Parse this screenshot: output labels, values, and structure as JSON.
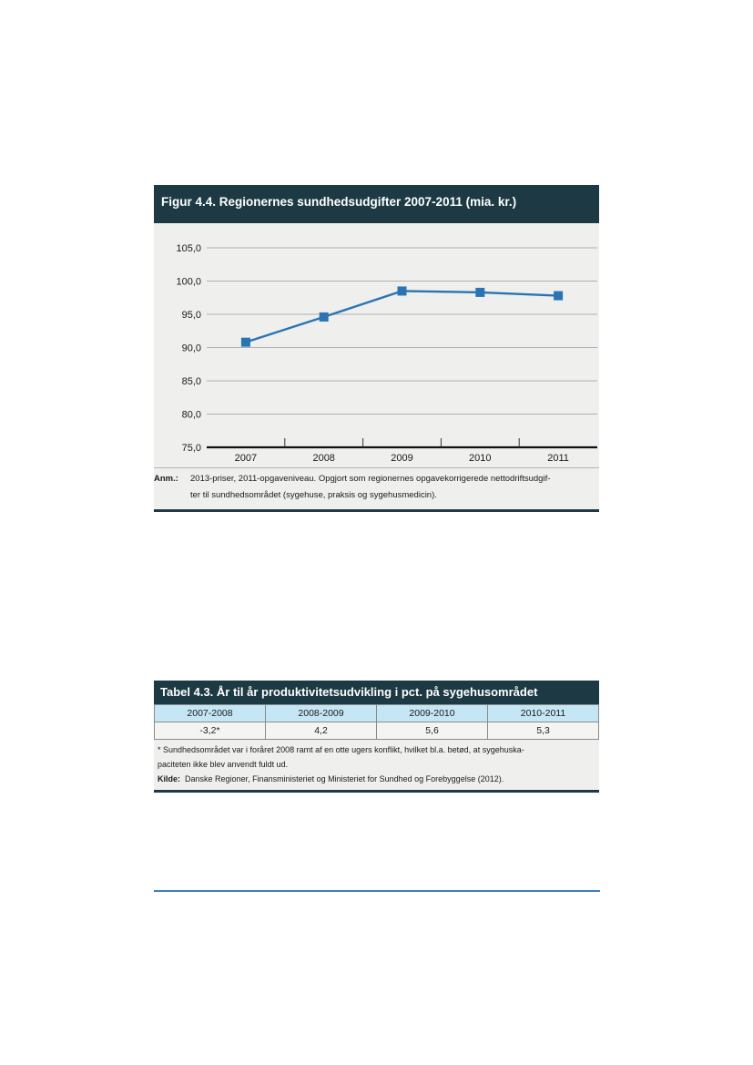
{
  "figure": {
    "title": "Figur 4.4.  Regionernes sundhedsudgifter 2007-2011 (mia. kr.)",
    "note_label": "Anm.:",
    "note_line1": "2013-priser, 2011-opgaveniveau. Opgjort som regionernes opgavekorrigerede nettodriftsudgif-",
    "note_line2": "ter til sundhedsområdet (sygehuse, praksis og sygehusmedicin)."
  },
  "chart_data": {
    "type": "line",
    "title": "Figur 4.4.  Regionernes sundhedsudgifter 2007-2011 (mia. kr.)",
    "x": [
      "2007",
      "2008",
      "2009",
      "2010",
      "2011"
    ],
    "series": [
      {
        "values": [
          90.8,
          94.6,
          98.5,
          98.3,
          97.8
        ]
      }
    ],
    "yticks": [
      "75,0",
      "80,0",
      "85,0",
      "90,0",
      "95,0",
      "100,0",
      "105,0"
    ],
    "ylim": [
      75,
      105
    ],
    "grid": true,
    "line_color": "#2a74b3"
  },
  "table": {
    "title": "Tabel 4.3. År til år produktivitetsudvikling i pct. på sygehusområdet",
    "headers": [
      "2007-2008",
      "2008-2009",
      "2009-2010",
      "2010-2011"
    ],
    "values": [
      "-3,2*",
      "4,2",
      "5,6",
      "5,3"
    ],
    "footnote_line1": "* Sundhedsområdet var i foråret 2008 ramt af en otte ugers konflikt, hvilket bl.a. betød, at sygehuska-",
    "footnote_line2": "paciteten ikke blev anvendt fuldt ud.",
    "source_label": "Kilde:",
    "source_text": "Danske Regioner, Finansministeriet og Ministeriet for Sundhed og Forebyggelse (2012)."
  }
}
